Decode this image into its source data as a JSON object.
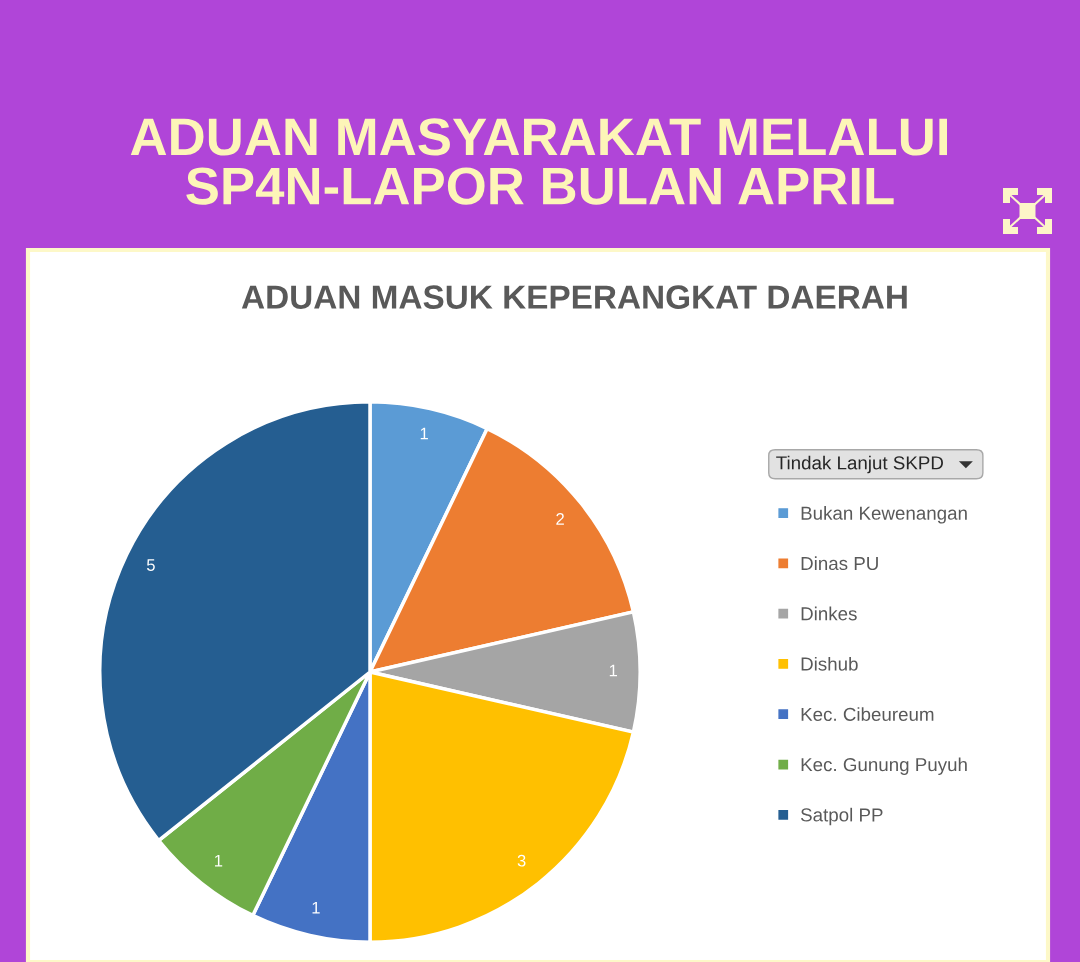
{
  "chart_data": {
    "type": "pie",
    "title": "ADUAN MASYARAKAT MELALUI\nSP4N-LAPOR BULAN APRIL",
    "subtitle": "ADUAN MASUK KEPERANGKAT DAERAH",
    "legend_title": "Tindak Lanjut SKPD",
    "categories": [
      "Bukan Kewenangan",
      "Dinas PU",
      "Dinkes",
      "Dishub",
      "Kec. Cibeureum",
      "Kec. Gunung Puyuh",
      "Satpol PP"
    ],
    "values": [
      1,
      2,
      1,
      3,
      1,
      1,
      5
    ],
    "colors": [
      "#5b9bd5",
      "#ed7d31",
      "#a5a5a5",
      "#ffc000",
      "#4472c4",
      "#70ad47",
      "#255e91"
    ],
    "data_labels": true,
    "legend": "right"
  }
}
